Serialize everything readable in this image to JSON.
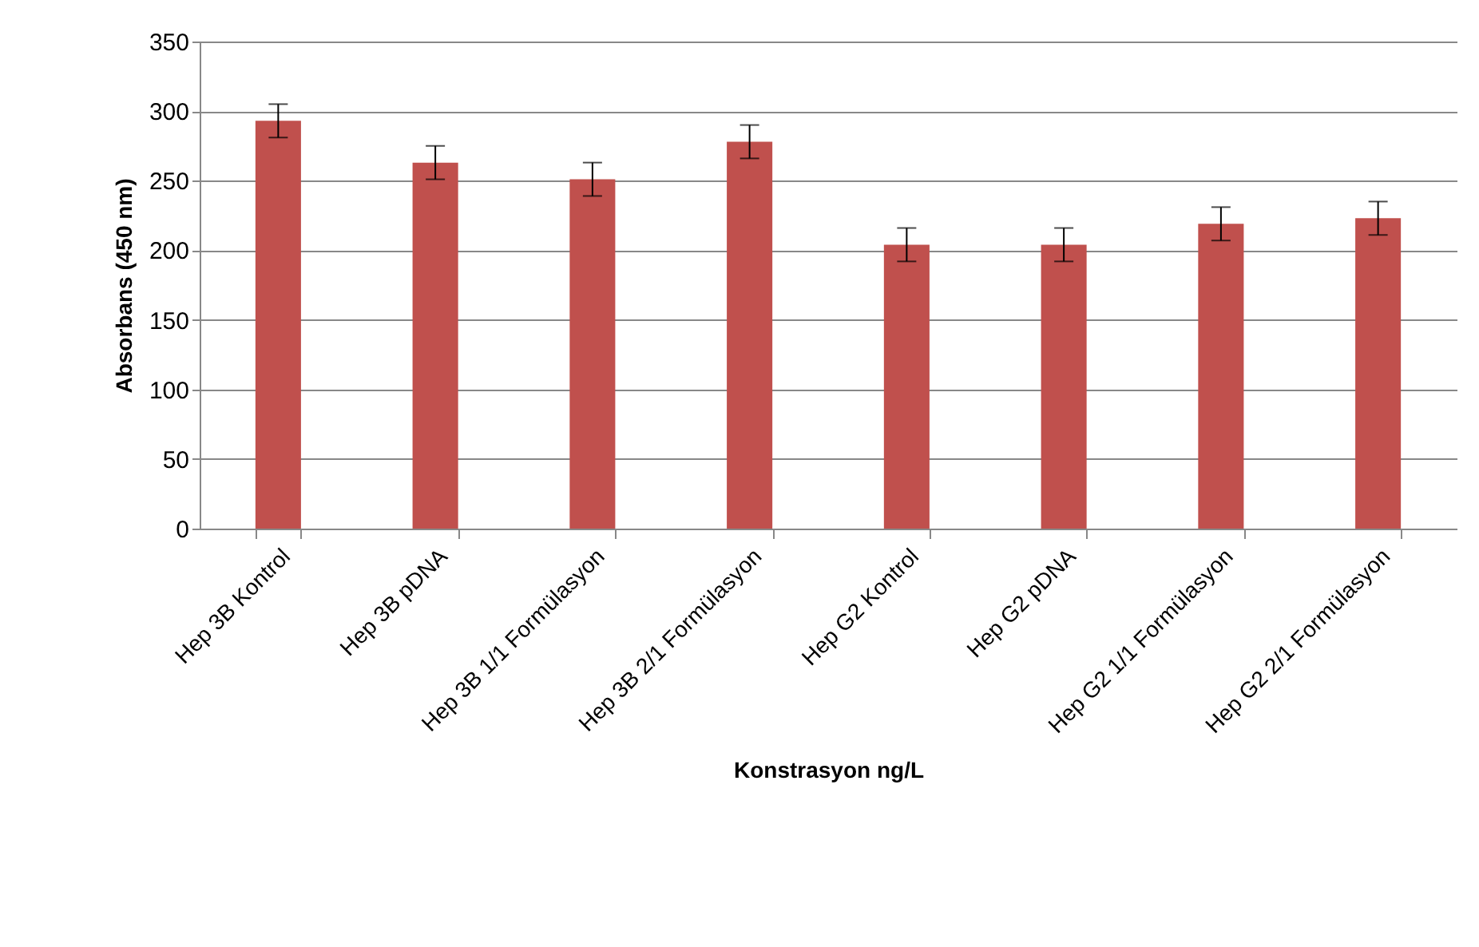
{
  "chart_data": {
    "type": "bar",
    "xlabel": "Konstrasyon  ng/L",
    "ylabel": "Absorbans (450 nm)",
    "categories": [
      "Hep 3B Kontrol",
      "Hep 3B pDNA",
      "Hep 3B 1/1 Formülasyon",
      "Hep 3B 2/1 Formülasyon",
      "Hep G2 Kontrol",
      "Hep G2 pDNA",
      "Hep G2 1/1 Formülasyon",
      "Hep G2 2/1 Formülasyon"
    ],
    "values": [
      293,
      263,
      251,
      278,
      204,
      204,
      219,
      223
    ],
    "errors": [
      12,
      12,
      12,
      12,
      12,
      12,
      12,
      12
    ],
    "color": "#c0504d",
    "ylim": [
      0,
      350
    ],
    "yticks": [
      0,
      50,
      100,
      150,
      200,
      250,
      300,
      350
    ],
    "grid": "y"
  }
}
